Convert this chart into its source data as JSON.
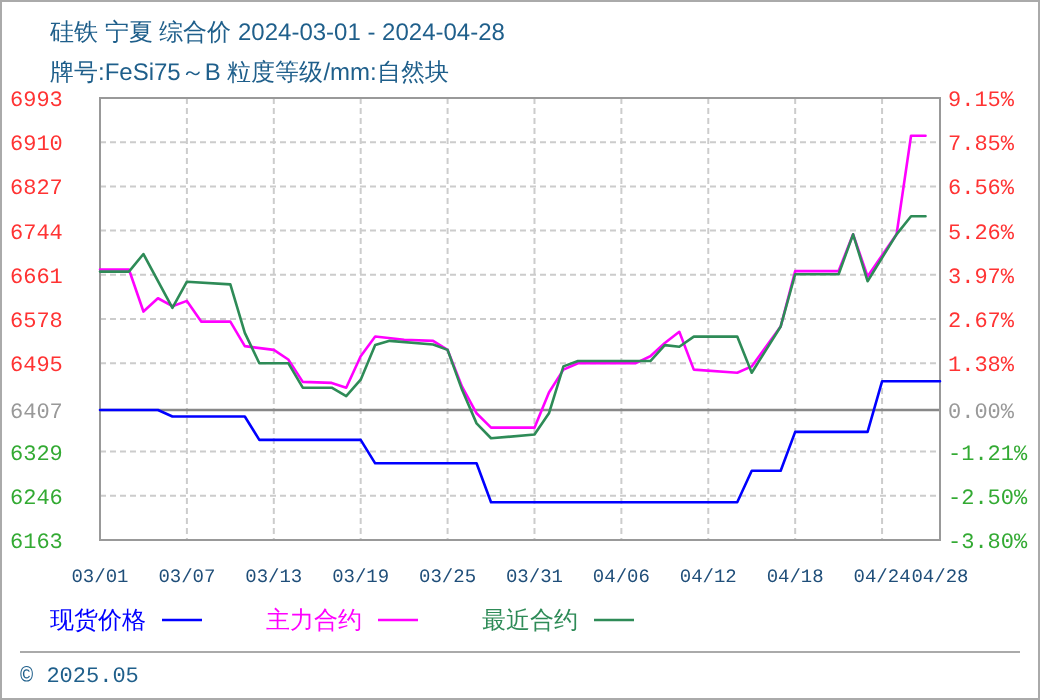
{
  "chart_data": {
    "type": "line",
    "title": "硅铁 宁夏 综合价 2024-03-01 - 2024-04-28",
    "subtitle": "牌号:FeSi75～B 粒度等级/mm:自然块",
    "annotations": [
      "© 2025.05"
    ],
    "xlim": [
      "--03-01",
      "--04-28"
    ],
    "xticks": [
      {
        "value": "--03-01",
        "label": "03/01"
      },
      {
        "value": "--03-07",
        "label": "03/07"
      },
      {
        "value": "--03-13",
        "label": "03/13"
      },
      {
        "value": "--03-19",
        "label": "03/19"
      },
      {
        "value": "--03-25",
        "label": "03/25"
      },
      {
        "value": "--03-31",
        "label": "03/31"
      },
      {
        "value": "--04-06",
        "label": "04/06"
      },
      {
        "value": "--04-12",
        "label": "04/12"
      },
      {
        "value": "--04-18",
        "label": "04/18"
      },
      {
        "value": "--04-24",
        "label": "04/24"
      },
      {
        "value": "--04-28",
        "label": "04/28"
      }
    ],
    "ylim": [
      6163,
      6993
    ],
    "yticks": [
      6993,
      6910,
      6827,
      6744,
      6661,
      6578,
      6495,
      6407,
      6329,
      6246,
      6163
    ],
    "y2lim": [
      -3.8,
      9.15
    ],
    "y2ticks": [
      {
        "value": 9.15,
        "label": "9.15%"
      },
      {
        "value": 7.85,
        "label": "7.85%"
      },
      {
        "value": 6.56,
        "label": "6.56%"
      },
      {
        "value": 5.26,
        "label": "5.26%"
      },
      {
        "value": 3.97,
        "label": "3.97%"
      },
      {
        "value": 2.67,
        "label": "2.67%"
      },
      {
        "value": 1.38,
        "label": "1.38%"
      },
      {
        "value": 0,
        "label": "0.00%"
      },
      {
        "value": -1.21,
        "label": "-1.21%"
      },
      {
        "value": -2.5,
        "label": "-2.50%"
      },
      {
        "value": -3.8,
        "label": "-3.80%"
      }
    ],
    "ref_lines": [
      {
        "axis": "y",
        "value": 6407,
        "color": "#888888"
      }
    ],
    "grid": true,
    "legend": "bottom",
    "series": [
      {
        "name": "现货价格",
        "color": "#0000ff",
        "x": [
          "--03-01",
          "--03-05",
          "--03-06",
          "--03-11",
          "--03-12",
          "--03-19",
          "--03-20",
          "--03-27",
          "--03-28",
          "--04-14",
          "--04-15",
          "--04-17",
          "--04-18",
          "--04-23",
          "--04-24",
          "--04-28"
        ],
        "values": [
          6407,
          6407,
          6395,
          6395,
          6351,
          6351,
          6307,
          6307,
          6234,
          6234,
          6293,
          6293,
          6366,
          6366,
          6461,
          6461
        ]
      },
      {
        "name": "主力合约",
        "color": "#ff00ff",
        "x": [
          "--03-01",
          "--03-03",
          "--03-04",
          "--03-05",
          "--03-06",
          "--03-07",
          "--03-08",
          "--03-10",
          "--03-11",
          "--03-13",
          "--03-14",
          "--03-15",
          "--03-17",
          "--03-18",
          "--03-19",
          "--03-20",
          "--03-22",
          "--03-24",
          "--03-25",
          "--03-26",
          "--03-27",
          "--03-28",
          "--03-31",
          "--04-01",
          "--04-02",
          "--04-03",
          "--04-07",
          "--04-08",
          "--04-09",
          "--04-10",
          "--04-11",
          "--04-14",
          "--04-15",
          "--04-17",
          "--04-18",
          "--04-21",
          "--04-22",
          "--04-23",
          "--04-25",
          "--04-26",
          "--04-27"
        ],
        "values": [
          6671,
          6671,
          6592,
          6617,
          6602,
          6612,
          6573,
          6573,
          6527,
          6520,
          6502,
          6460,
          6458,
          6449,
          6508,
          6545,
          6539,
          6537,
          6520,
          6451,
          6401,
          6374,
          6374,
          6440,
          6483,
          6495,
          6495,
          6508,
          6533,
          6554,
          6483,
          6477,
          6489,
          6564,
          6668,
          6668,
          6737,
          6658,
          6737,
          6922,
          6922
        ]
      },
      {
        "name": "最近合约",
        "color": "#2e8b57",
        "x": [
          "--03-01",
          "--03-03",
          "--03-04",
          "--03-06",
          "--03-07",
          "--03-10",
          "--03-11",
          "--03-12",
          "--03-14",
          "--03-15",
          "--03-17",
          "--03-18",
          "--03-19",
          "--03-20",
          "--03-21",
          "--03-24",
          "--03-25",
          "--03-26",
          "--03-27",
          "--03-28",
          "--03-31",
          "--04-01",
          "--04-02",
          "--04-03",
          "--04-08",
          "--04-09",
          "--04-10",
          "--04-11",
          "--04-14",
          "--04-15",
          "--04-17",
          "--04-18",
          "--04-21",
          "--04-22",
          "--04-23",
          "--04-25",
          "--04-26",
          "--04-27"
        ],
        "values": [
          6667,
          6667,
          6700,
          6599,
          6648,
          6643,
          6552,
          6495,
          6495,
          6449,
          6449,
          6433,
          6464,
          6529,
          6537,
          6530,
          6520,
          6445,
          6382,
          6354,
          6361,
          6401,
          6489,
          6499,
          6499,
          6529,
          6526,
          6545,
          6545,
          6477,
          6564,
          6662,
          6662,
          6737,
          6649,
          6737,
          6771,
          6771
        ]
      }
    ]
  }
}
